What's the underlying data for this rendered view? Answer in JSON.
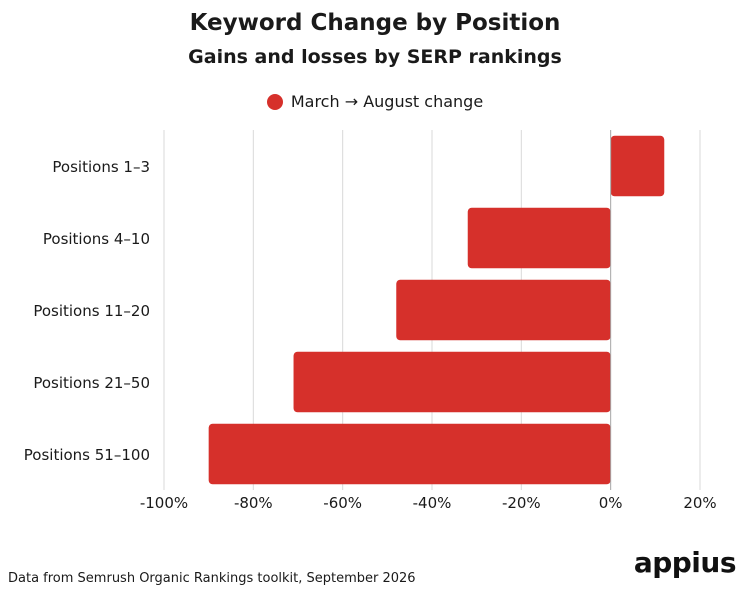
{
  "colors": {
    "bar": "#d6302b",
    "grid": "#d9d9d9",
    "zero_line": "#a6a6a6"
  },
  "chart_data": {
    "type": "bar",
    "orientation": "horizontal",
    "title": "Keyword Change by Position",
    "subtitle": "Gains and losses by SERP rankings",
    "categories": [
      "Positions 1–3",
      "Positions 4–10",
      "Positions 11–20",
      "Positions 21–50",
      "Positions 51–100"
    ],
    "series": [
      {
        "name": "March → August change",
        "values": [
          12,
          -32,
          -48,
          -71,
          -90
        ]
      }
    ],
    "xlim": [
      -100,
      20
    ],
    "xticks": [
      -100,
      -80,
      -60,
      -40,
      -20,
      0,
      20
    ],
    "xtick_labels": [
      "-100%",
      "-80%",
      "-60%",
      "-40%",
      "-20%",
      "0%",
      "20%"
    ],
    "grid": true,
    "legend_position": "top-center"
  },
  "footnote": "Data from Semrush Organic Rankings toolkit, September 2026",
  "logo_text": "appius"
}
